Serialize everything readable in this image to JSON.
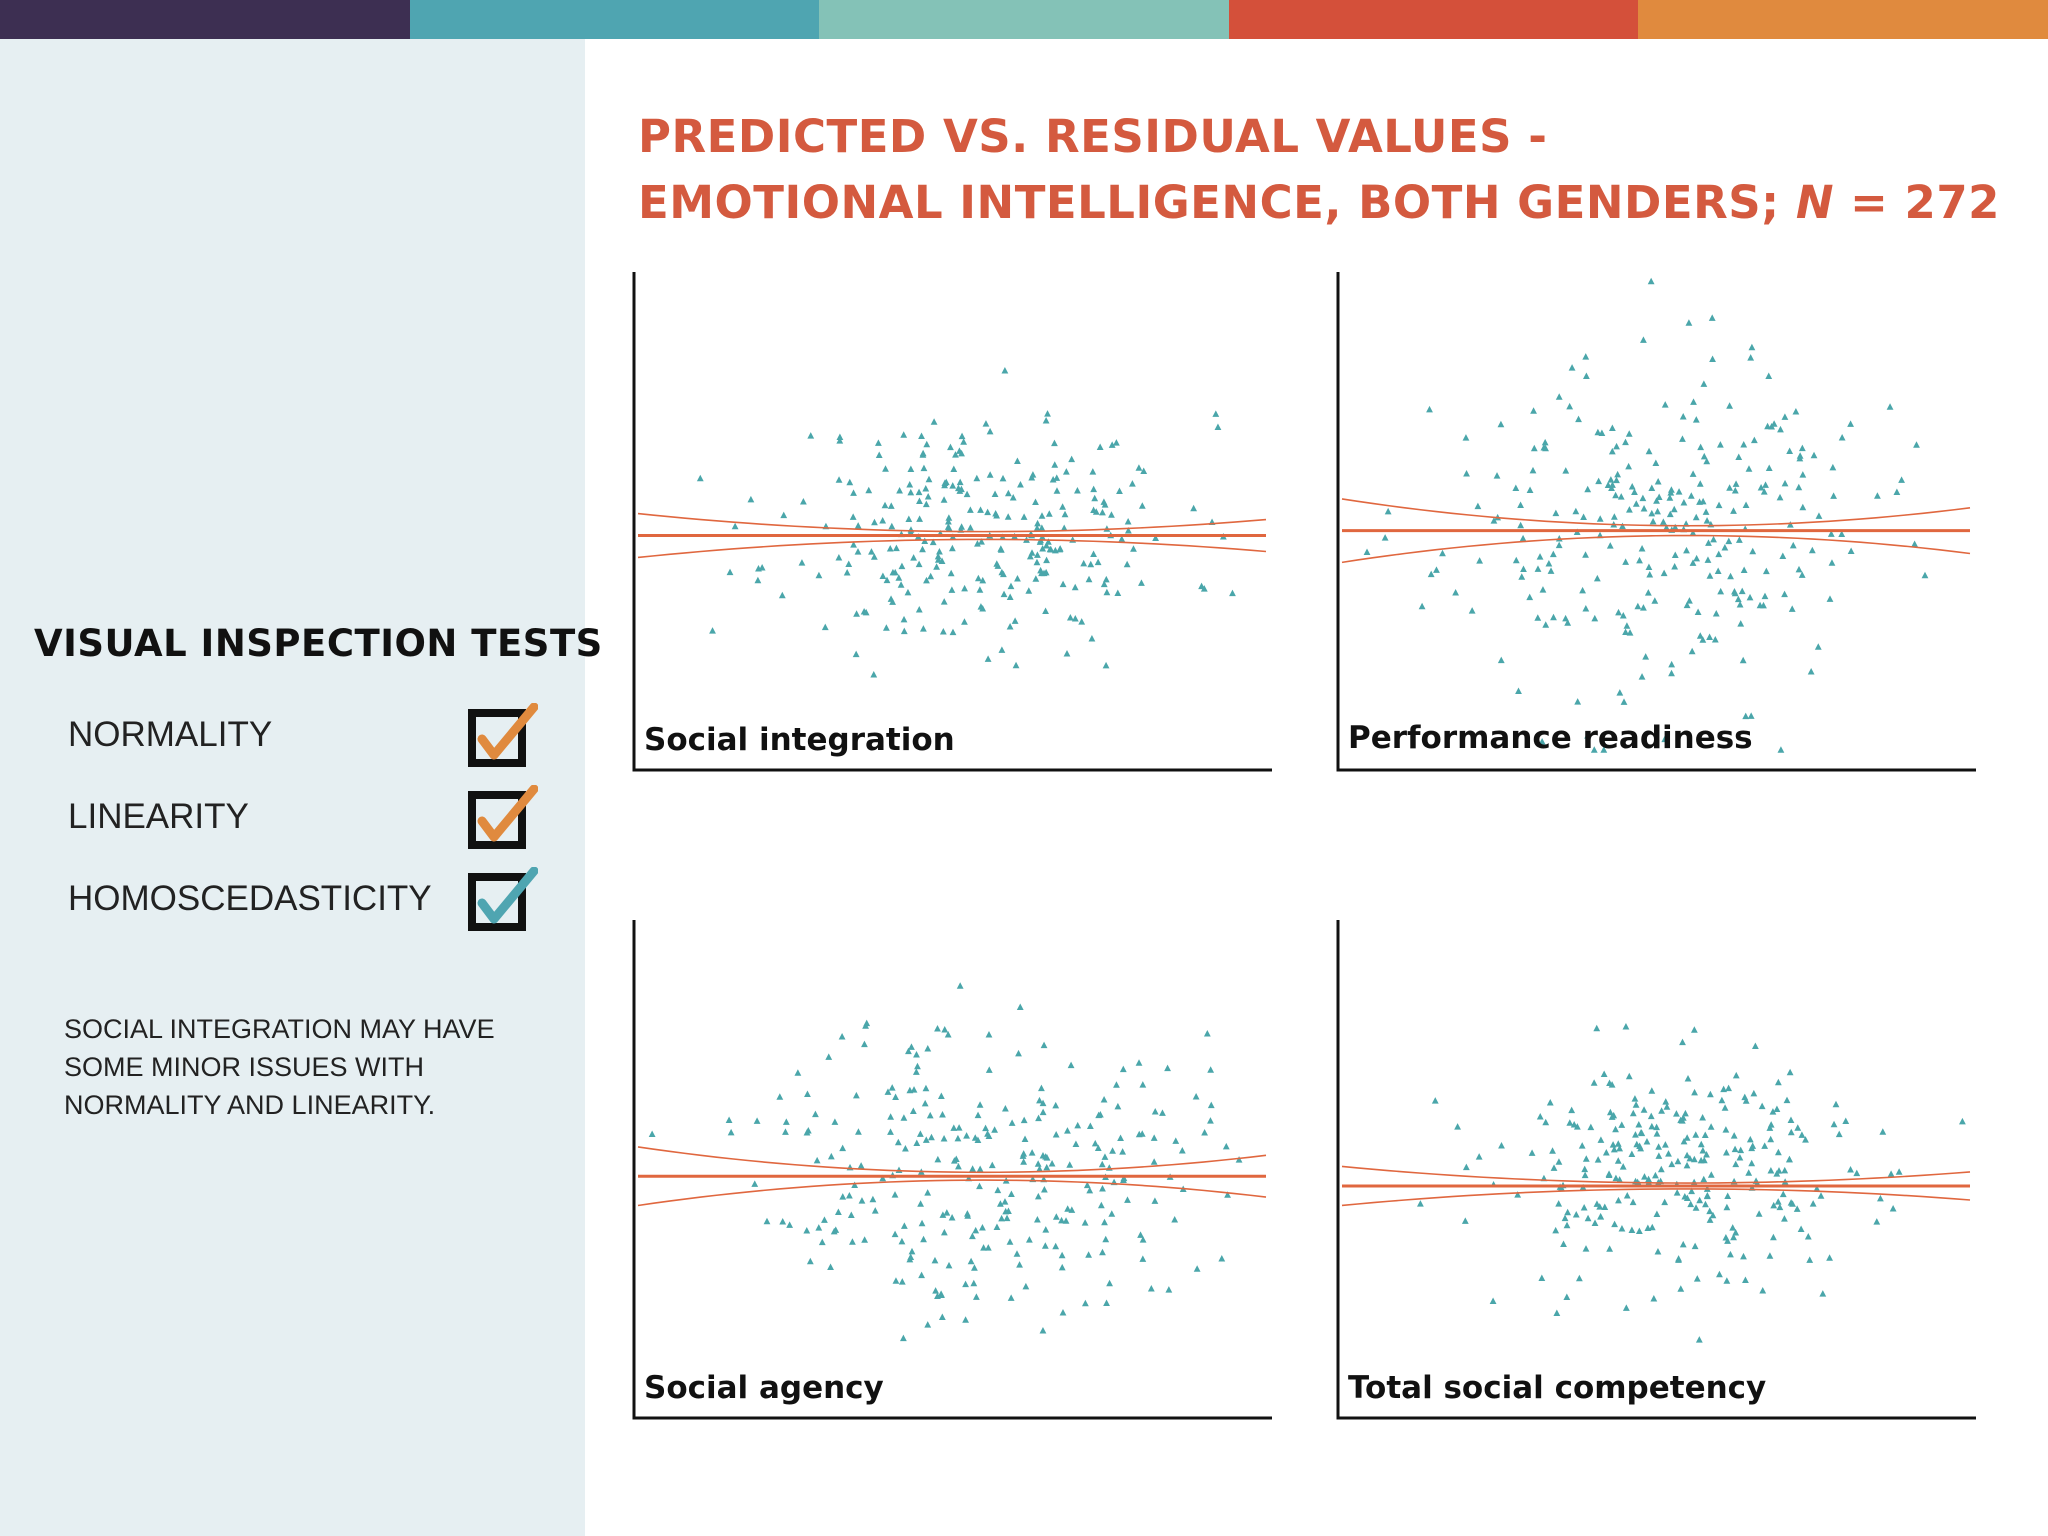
{
  "colors": {
    "top_bar": [
      "#3d2f52",
      "#4fa5b1",
      "#84c2b7",
      "#d4503a",
      "#e08a3e"
    ],
    "sidebar_bg": "#e6eff2",
    "title": "#d45a3f",
    "points": "#4aa6aa",
    "fit_lines": "#e0673f",
    "check_orange": "#e08a3e",
    "check_teal": "#4fa5b1"
  },
  "sidebar": {
    "heading": "VISUAL INSPECTION TESTS",
    "checks": [
      {
        "label": "NORMALITY",
        "checked": true,
        "color": "orange",
        "icon": "check-icon"
      },
      {
        "label": "LINEARITY",
        "checked": true,
        "color": "orange",
        "icon": "check-icon"
      },
      {
        "label": "HOMOSCEDASTICITY",
        "checked": true,
        "color": "teal",
        "icon": "check-icon"
      }
    ],
    "note": "Social integration may have some minor issues with normality and linearity."
  },
  "title": {
    "line1": "PREDICTED VS. RESIDUAL VALUES -",
    "line2_prefix": "EMOTIONAL INTELLIGENCE, BOTH GENDERS; ",
    "line2_var": "N",
    "line2_suffix": " = 272"
  },
  "chart_data": [
    {
      "type": "scatter",
      "title": "Social integration",
      "xlabel": "",
      "ylabel": "",
      "n_points": 272,
      "x_center": 0.55,
      "x_spread": 0.16,
      "y_center": 0.47,
      "y_spread": 0.12,
      "fit": {
        "intercept": 0.46,
        "slope": 0.0
      },
      "ci_band": {
        "half_width_edge": 0.045,
        "half_width_center": 0.008
      },
      "seed": 11,
      "grid": false
    },
    {
      "type": "scatter",
      "title": "Performance readiness",
      "xlabel": "",
      "ylabel": "",
      "n_points": 272,
      "x_center": 0.5,
      "x_spread": 0.17,
      "y_center": 0.47,
      "y_spread": 0.17,
      "fit": {
        "intercept": 0.47,
        "slope": 0.0
      },
      "ci_band": {
        "half_width_edge": 0.065,
        "half_width_center": 0.01
      },
      "seed": 23,
      "grid": false
    },
    {
      "type": "scatter",
      "title": "Social agency",
      "xlabel": "",
      "ylabel": "",
      "n_points": 272,
      "x_center": 0.55,
      "x_spread": 0.17,
      "y_center": 0.5,
      "y_spread": 0.15,
      "fit": {
        "intercept": 0.475,
        "slope": 0.0
      },
      "ci_band": {
        "half_width_edge": 0.06,
        "half_width_center": 0.008
      },
      "seed": 37,
      "grid": false
    },
    {
      "type": "scatter",
      "title": "Total social competency",
      "xlabel": "",
      "ylabel": "",
      "n_points": 272,
      "x_center": 0.55,
      "x_spread": 0.16,
      "y_center": 0.48,
      "y_spread": 0.12,
      "fit": {
        "intercept": 0.455,
        "slope": 0.0
      },
      "ci_band": {
        "half_width_edge": 0.04,
        "half_width_center": 0.006
      },
      "seed": 53,
      "grid": false
    }
  ]
}
